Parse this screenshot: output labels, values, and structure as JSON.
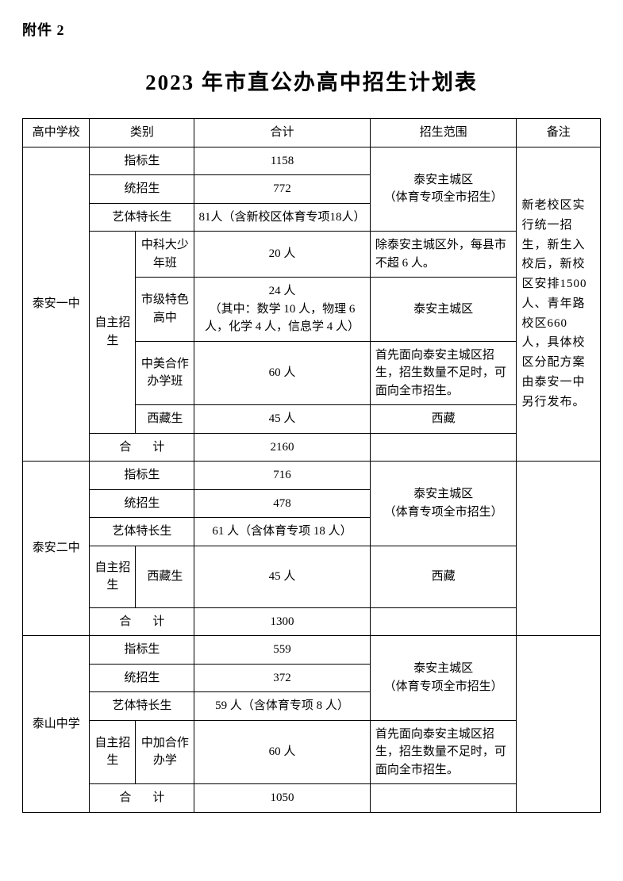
{
  "attachment_label": "附件 2",
  "page_title": "2023 年市直公办高中招生计划表",
  "headers": {
    "school": "高中学校",
    "type": "类别",
    "total": "合计",
    "scope": "招生范围",
    "remark": "备注"
  },
  "category_labels": {
    "zhibiao": "指标生",
    "tongzhao": "统招生",
    "yiti": "艺体特长生",
    "zizhu": "自主招生",
    "heji": "合　计",
    "zhongke": "中科大少年班",
    "tese": "市级特色高中",
    "zhongmei": "中美合作办学班",
    "xizang": "西藏生",
    "zhongjia": "中加合作办学"
  },
  "scopes": {
    "taian_main": "泰安主城区\n（体育专项全市招生）",
    "except_taian": "除泰安主城区外，每县市不超 6 人。",
    "taian_city": "泰安主城区",
    "priority_taian": "首先面向泰安主城区招生，招生数量不足时，可面向全市招生。",
    "xizang": "西藏"
  },
  "schools": {
    "taian1": {
      "name": "泰安一中",
      "zhibiao": "1158",
      "tongzhao": "772",
      "yiti": "81人（含新校区体育专项18人）",
      "zhongke": "20 人",
      "tese": "24 人\n（其中：数学 10 人，物理 6 人，化学 4 人，信息学 4 人）",
      "zhongmei": "60 人",
      "xizang": "45 人",
      "heji": "2160",
      "remark": "新老校区实行统一招生，新生入校后，新校区安排1500人、青年路校区660 人，具体校区分配方案由泰安一中另行发布。"
    },
    "taian2": {
      "name": "泰安二中",
      "zhibiao": "716",
      "tongzhao": "478",
      "yiti": "61 人（含体育专项 18 人）",
      "xizang": "45 人",
      "heji": "1300"
    },
    "taishan": {
      "name": "泰山中学",
      "zhibiao": "559",
      "tongzhao": "372",
      "yiti": "59 人（含体育专项 8 人）",
      "zhongjia": "60 人",
      "heji": "1050"
    }
  }
}
